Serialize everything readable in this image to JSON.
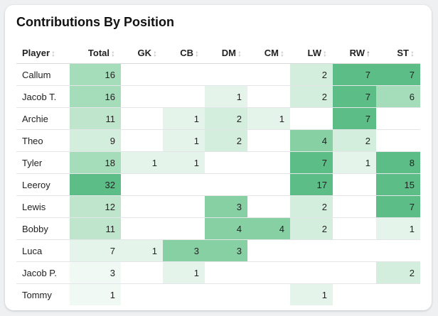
{
  "title": "Contributions By Position",
  "sort": {
    "column": "RW",
    "direction": "asc"
  },
  "colors": {
    "heat_scale": [
      "#f1f9f4",
      "#e4f4ea",
      "#d3eedd",
      "#bfe6cd",
      "#a5dcba",
      "#86d0a4",
      "#5cbd87"
    ]
  },
  "columns": [
    "Player",
    "Total",
    "GK",
    "CB",
    "DM",
    "CM",
    "LW",
    "RW",
    "ST"
  ],
  "rows": [
    {
      "player": "Callum",
      "values": [
        16,
        null,
        null,
        null,
        null,
        2,
        7,
        7
      ]
    },
    {
      "player": "Jacob T.",
      "values": [
        16,
        null,
        null,
        1,
        null,
        2,
        7,
        6
      ]
    },
    {
      "player": "Archie",
      "values": [
        11,
        null,
        1,
        2,
        1,
        null,
        7,
        null
      ]
    },
    {
      "player": "Theo",
      "values": [
        9,
        null,
        1,
        2,
        null,
        4,
        2,
        null
      ]
    },
    {
      "player": "Tyler",
      "values": [
        18,
        1,
        1,
        null,
        null,
        7,
        1,
        8
      ]
    },
    {
      "player": "Leeroy",
      "values": [
        32,
        null,
        null,
        null,
        null,
        17,
        null,
        15
      ]
    },
    {
      "player": "Lewis",
      "values": [
        12,
        null,
        null,
        3,
        null,
        2,
        null,
        7
      ]
    },
    {
      "player": "Bobby",
      "values": [
        11,
        null,
        null,
        4,
        4,
        2,
        null,
        1
      ]
    },
    {
      "player": "Luca",
      "values": [
        7,
        1,
        3,
        3,
        null,
        null,
        null,
        null
      ]
    },
    {
      "player": "Jacob P.",
      "values": [
        3,
        null,
        1,
        null,
        null,
        null,
        null,
        2
      ]
    },
    {
      "player": "Tommy",
      "values": [
        1,
        null,
        null,
        null,
        null,
        1,
        null,
        null
      ]
    }
  ]
}
